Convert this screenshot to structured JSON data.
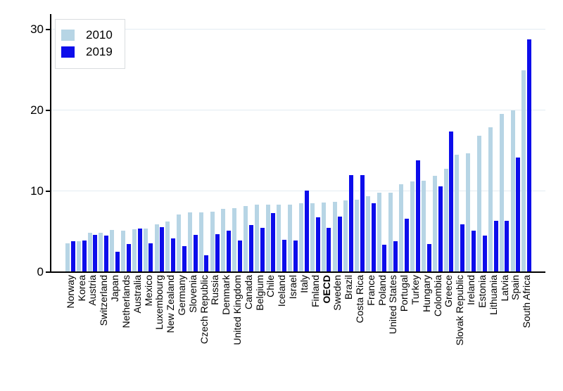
{
  "chart_data": {
    "type": "bar",
    "title": "",
    "xlabel": "",
    "ylabel": "",
    "ylim": [
      0,
      30
    ],
    "yticks": [
      0,
      10,
      20,
      30
    ],
    "grid": true,
    "legend_position": "top-left",
    "bold_category": "OECD",
    "categories": [
      "Norway",
      "Korea",
      "Austria",
      "Switzerland",
      "Japan",
      "Netherlands",
      "Australia",
      "Mexico",
      "Luxembourg",
      "New Zealand",
      "Germany",
      "Slovenia",
      "Czech Republic",
      "Russia",
      "Denmark",
      "United Kingdom",
      "Canada",
      "Belgium",
      "Chile",
      "Iceland",
      "Israel",
      "Italy",
      "Finland",
      "OECD",
      "Sweden",
      "Brazil",
      "Costa Rica",
      "France",
      "Poland",
      "United States",
      "Portugal",
      "Turkey",
      "Hungary",
      "Colombia",
      "Greece",
      "Slovak Republic",
      "Ireland",
      "Estonia",
      "Lithuania",
      "Latvia",
      "Spain",
      "South Africa"
    ],
    "series": [
      {
        "name": "2010",
        "color": "#b7d5e5",
        "values": [
          3.5,
          3.7,
          4.8,
          4.8,
          5.1,
          5.0,
          5.2,
          5.3,
          5.8,
          6.2,
          7.0,
          7.3,
          7.3,
          7.4,
          7.7,
          7.8,
          8.1,
          8.3,
          8.3,
          8.3,
          8.3,
          8.4,
          8.4,
          8.5,
          8.6,
          8.8,
          8.9,
          9.3,
          9.7,
          9.7,
          10.8,
          11.1,
          11.2,
          11.8,
          12.7,
          14.4,
          14.6,
          16.8,
          17.8,
          19.5,
          19.9,
          24.9
        ]
      },
      {
        "name": "2019",
        "color": "#0d0deb",
        "values": [
          3.7,
          3.8,
          4.5,
          4.4,
          2.4,
          3.4,
          5.3,
          3.5,
          5.5,
          4.1,
          3.1,
          4.5,
          2.0,
          4.6,
          5.0,
          3.8,
          5.7,
          5.4,
          7.2,
          3.9,
          3.8,
          10.0,
          6.7,
          5.4,
          6.8,
          11.9,
          11.9,
          8.4,
          3.3,
          3.7,
          6.5,
          13.7,
          3.4,
          10.5,
          17.3,
          5.8,
          5.0,
          4.4,
          6.3,
          6.3,
          14.1,
          28.7
        ]
      }
    ],
    "colors": {
      "gridline": "#e3ecf2",
      "axis": "#000000",
      "background": "#ffffff"
    }
  },
  "legend": {
    "items": [
      {
        "label": "2010"
      },
      {
        "label": "2019"
      }
    ]
  }
}
